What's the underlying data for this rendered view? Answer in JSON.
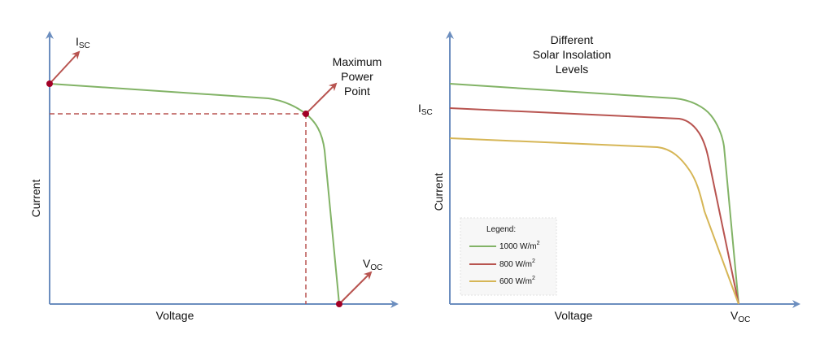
{
  "colors": {
    "axis": "#6c8ebf",
    "green": "#82b366",
    "red": "#b85450",
    "gold": "#d6b656",
    "marker": "#a20025",
    "legend_bg": "#f7f7f7"
  },
  "left_diagram": {
    "axis_x_label": "Voltage",
    "axis_y_label": "Current",
    "isc_main": "I",
    "isc_sub": "SC",
    "voc_main": "V",
    "voc_sub": "OC",
    "mpp_line1": "Maximum",
    "mpp_line2": "Power",
    "mpp_line3": "Point"
  },
  "right_diagram": {
    "title_line1": "Different",
    "title_line2": "Solar Insolation",
    "title_line3": "Levels",
    "axis_x_label": "Voltage",
    "axis_y_label": "Current",
    "isc_main": "I",
    "isc_sub": "SC",
    "voc_main": "V",
    "voc_sub": "OC",
    "legend": {
      "title": "Legend:",
      "items": [
        {
          "label": "1000 W/m",
          "sup": "2",
          "color": "#82b366"
        },
        {
          "label": "800 W/m",
          "sup": "2",
          "color": "#b85450"
        },
        {
          "label": "600 W/m",
          "sup": "2",
          "color": "#d6b656"
        }
      ]
    }
  }
}
